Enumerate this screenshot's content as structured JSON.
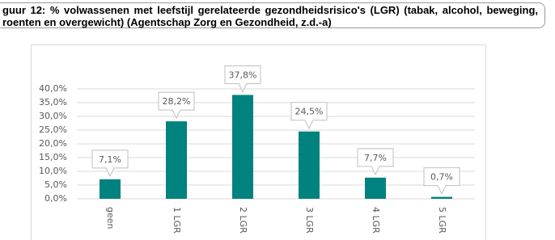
{
  "caption": [
    "guur 12: % volwassenen met leefstijl gerelateerde gezondheidsrisico's (LGR) (tabak, alcohol, beweging,",
    "roenten en overgewicht) (Agentschap Zorg en Gezondheid, z.d.-a)"
  ],
  "chart_data": {
    "type": "bar",
    "categories": [
      "geen",
      "1 LGR",
      "2 LGR",
      "3 LGR",
      "4 LGR",
      "5 LGR"
    ],
    "values": [
      7.1,
      28.2,
      37.8,
      24.5,
      7.7,
      0.7
    ],
    "value_labels": [
      "7,1%",
      "28,2%",
      "37,8%",
      "24,5%",
      "7,7%",
      "0,7%"
    ],
    "color": "#00827f",
    "ylim": [
      0,
      40
    ],
    "yticks": [
      {
        "value": 0,
        "label": "0,0%"
      },
      {
        "value": 5,
        "label": "5,0%"
      },
      {
        "value": 10,
        "label": "10,0%"
      },
      {
        "value": 15,
        "label": "15,0%"
      },
      {
        "value": 20,
        "label": "20,0%"
      },
      {
        "value": 25,
        "label": "25,0%"
      },
      {
        "value": 30,
        "label": "30,0%"
      },
      {
        "value": 35,
        "label": "35,0%"
      },
      {
        "value": 40,
        "label": "40,0%"
      }
    ],
    "grid": true
  }
}
